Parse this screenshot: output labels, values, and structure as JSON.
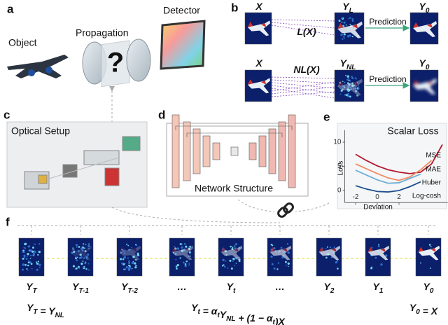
{
  "panels": {
    "a": {
      "label": "a",
      "object": "Object",
      "propagation": "Propagation",
      "detector": "Detector"
    },
    "b": {
      "label": "b",
      "rows": [
        {
          "input": {
            "text": "X"
          },
          "operator": [
            {
              "text": "L("
            },
            {
              "text": "X"
            },
            {
              "text": ")"
            }
          ],
          "output": {
            "text": "Y",
            "sub": "L"
          },
          "arrow": "Prediction",
          "result": {
            "text": "Y",
            "sub": "0"
          }
        },
        {
          "input": {
            "text": "X"
          },
          "operator": [
            {
              "text": "NL("
            },
            {
              "text": "X"
            },
            {
              "text": ")"
            }
          ],
          "output": {
            "text": "Y",
            "sub": "NL"
          },
          "arrow": "Prediction",
          "result": {
            "text": "Y",
            "sub": "0"
          }
        }
      ]
    },
    "c": {
      "label": "c",
      "title": "Optical Setup"
    },
    "d": {
      "label": "d",
      "title": "Network Structure"
    },
    "e": {
      "label": "e"
    },
    "f": {
      "label": "f",
      "sequence": [
        {
          "text": "Y",
          "sub": "T"
        },
        {
          "text": "Y",
          "sub": "T-1"
        },
        {
          "text": "Y",
          "sub": "T-2"
        },
        {
          "text": "…"
        },
        {
          "text": "Y",
          "sub": "t"
        },
        {
          "text": "…"
        },
        {
          "text": "Y",
          "sub": "2"
        },
        {
          "text": "Y",
          "sub": "1"
        },
        {
          "text": "Y",
          "sub": "0"
        }
      ],
      "equations": [
        [
          {
            "text": "Y",
            "sub": "T"
          },
          {
            "text": " = "
          },
          {
            "text": "Y",
            "sub": "NL"
          }
        ],
        [
          {
            "text": "Y",
            "sub": "t"
          },
          {
            "text": " = "
          },
          {
            "text": "α",
            "sub": "t"
          },
          {
            "text": "Y",
            "sub": "NL"
          },
          {
            "text": " + (1 − "
          },
          {
            "text": "α",
            "sub": "t"
          },
          {
            "text": ")"
          },
          {
            "text": "X"
          }
        ],
        [
          {
            "text": "Y",
            "sub": "0"
          },
          {
            "text": " = "
          },
          {
            "text": "X"
          }
        ]
      ]
    }
  },
  "chart_data": {
    "type": "line",
    "title": "Scalar Loss",
    "ylabel": "Loss",
    "xlabel": "Deviation",
    "x": [
      -2,
      -1,
      0,
      1,
      2,
      3,
      4,
      5,
      6
    ],
    "xlim": [
      -3,
      6.5
    ],
    "ylim": [
      -2.5,
      12.5
    ],
    "xticks": [
      -2,
      0,
      2
    ],
    "yticks": [
      0,
      5,
      10
    ],
    "series": [
      {
        "name": "MSE",
        "color": "#b2182b",
        "values": [
          7.5,
          6.2,
          5.1,
          4.3,
          3.8,
          3.5,
          3.8,
          5.5,
          9.5
        ]
      },
      {
        "name": "MAE",
        "color": "#ef8a62",
        "values": [
          5.5,
          4.5,
          3.5,
          2.6,
          2.1,
          2.8,
          4.3,
          6.2,
          null
        ]
      },
      {
        "name": "Huber",
        "color": "#6baed6",
        "values": [
          4.2,
          3.2,
          2.2,
          1.5,
          1.6,
          2.5,
          3.4,
          null,
          null
        ]
      },
      {
        "name": "Log-cosh",
        "color": "#1f4e8c",
        "values": [
          1.0,
          0.3,
          -0.2,
          -0.3,
          0.0,
          0.8,
          1.8,
          null,
          null
        ]
      }
    ]
  }
}
